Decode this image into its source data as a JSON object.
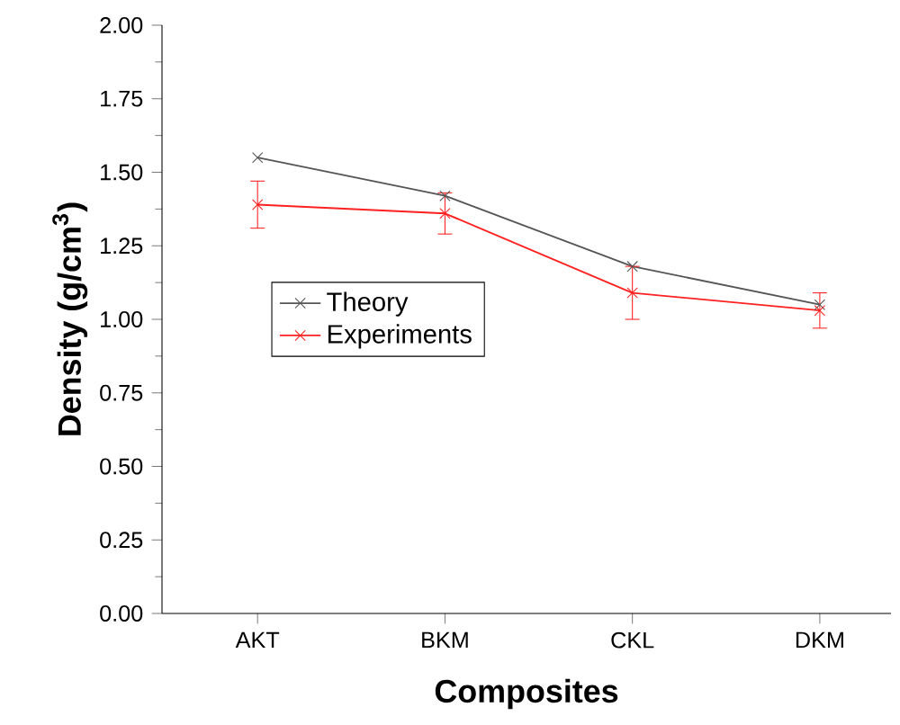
{
  "chart_data": {
    "type": "line",
    "xlabel": "Composites",
    "ylabel": "Density (g/cm$^{3}$)",
    "categories": [
      "AKT",
      "BKM",
      "CKL",
      "DKM"
    ],
    "series": [
      {
        "name": "Theory",
        "color": "#555555",
        "values": [
          1.55,
          1.42,
          1.18,
          1.05
        ]
      },
      {
        "name": "Experiments",
        "color": "#ff2020",
        "values": [
          1.39,
          1.36,
          1.09,
          1.03
        ],
        "errors": [
          0.08,
          0.07,
          0.09,
          0.06
        ]
      }
    ],
    "ylim": [
      0,
      2
    ],
    "yticks": [
      {
        "value": 0,
        "label": "0.00"
      },
      {
        "value": 0.25,
        "label": "0.25"
      },
      {
        "value": 0.5,
        "label": "0.50"
      },
      {
        "value": 0.75,
        "label": "0.75"
      },
      {
        "value": 1,
        "label": "1.00"
      },
      {
        "value": 1.25,
        "label": "1.25"
      },
      {
        "value": 1.5,
        "label": "1.50"
      },
      {
        "value": 1.75,
        "label": "1.75"
      },
      {
        "value": 2,
        "label": "2.00"
      }
    ],
    "marker": "cross",
    "line_style": "solid",
    "legend": "left",
    "grid": false
  }
}
